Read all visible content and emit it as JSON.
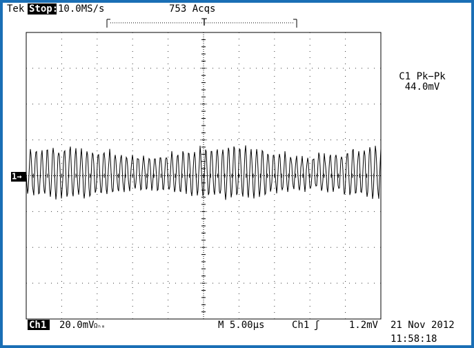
{
  "header": {
    "brand": "Tek",
    "state": "Stop:",
    "sample_rate": "10.0MS/s",
    "acquisitions": "753 Acqs",
    "trigger_marker": "T"
  },
  "measurement": {
    "label": "C1 Pk−Pk",
    "value": "44.0mV"
  },
  "channel_marker": "1→",
  "footer": {
    "channel": "Ch1",
    "scale": "20.0mV",
    "coupling": "Ωₕₘ",
    "timebase": "M 5.00µs",
    "trigger_source": "Ch1",
    "trigger_slope": "ʃ",
    "trigger_level": "1.2mV",
    "date": "21 Nov 2012",
    "time": "11:58:18"
  }
}
